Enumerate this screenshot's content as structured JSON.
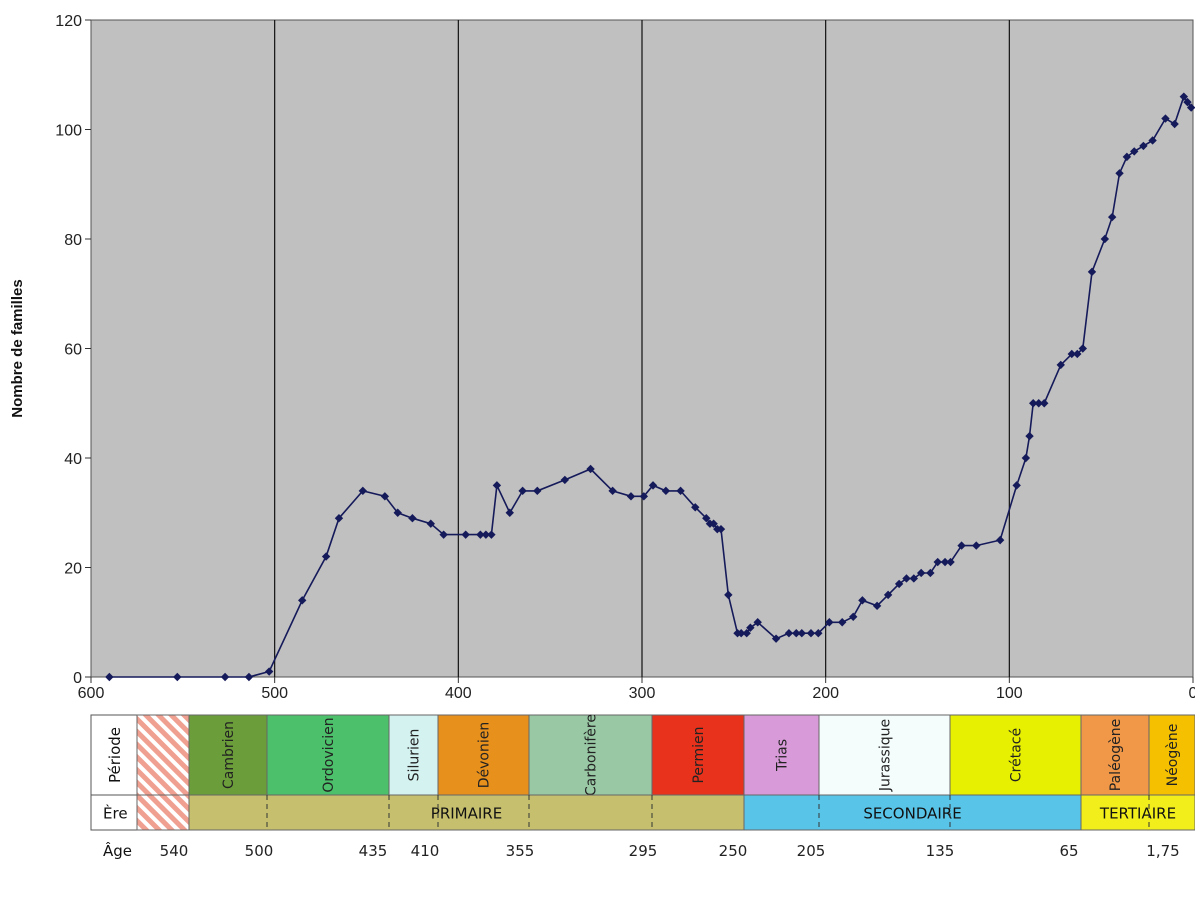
{
  "chart_data": {
    "type": "line",
    "ylabel": "Nombre de familles",
    "xlabel": "",
    "xlim": [
      600,
      0
    ],
    "ylim": [
      0,
      120
    ],
    "x_ticks": [
      600,
      500,
      400,
      300,
      200,
      100,
      0
    ],
    "y_ticks": [
      0,
      20,
      40,
      60,
      80,
      100,
      120
    ],
    "grid": "vertical lines at each x tick",
    "background": "#c0c0c0",
    "series": [
      {
        "color": "#151a5a",
        "points": [
          [
            590,
            0
          ],
          [
            553,
            0
          ],
          [
            527,
            0
          ],
          [
            514,
            0
          ],
          [
            503,
            1
          ],
          [
            485,
            14
          ],
          [
            472,
            22
          ],
          [
            465,
            29
          ],
          [
            452,
            34
          ],
          [
            440,
            33
          ],
          [
            433,
            30
          ],
          [
            425,
            29
          ],
          [
            415,
            28
          ],
          [
            408,
            26
          ],
          [
            396,
            26
          ],
          [
            388,
            26
          ],
          [
            385,
            26
          ],
          [
            382,
            26
          ],
          [
            379,
            35
          ],
          [
            372,
            30
          ],
          [
            365,
            34
          ],
          [
            357,
            34
          ],
          [
            342,
            36
          ],
          [
            328,
            38
          ],
          [
            316,
            34
          ],
          [
            306,
            33
          ],
          [
            299,
            33
          ],
          [
            294,
            35
          ],
          [
            287,
            34
          ],
          [
            279,
            34
          ],
          [
            271,
            31
          ],
          [
            265,
            29
          ],
          [
            263,
            28
          ],
          [
            261,
            28
          ],
          [
            259,
            27
          ],
          [
            257,
            27
          ],
          [
            253,
            15
          ],
          [
            248,
            8
          ],
          [
            246,
            8
          ],
          [
            243,
            8
          ],
          [
            241,
            9
          ],
          [
            237,
            10
          ],
          [
            227,
            7
          ],
          [
            220,
            8
          ],
          [
            216,
            8
          ],
          [
            213,
            8
          ],
          [
            208,
            8
          ],
          [
            204,
            8
          ],
          [
            198,
            10
          ],
          [
            191,
            10
          ],
          [
            185,
            11
          ],
          [
            180,
            14
          ],
          [
            172,
            13
          ],
          [
            166,
            15
          ],
          [
            160,
            17
          ],
          [
            156,
            18
          ],
          [
            152,
            18
          ],
          [
            148,
            19
          ],
          [
            143,
            19
          ],
          [
            139,
            21
          ],
          [
            135,
            21
          ],
          [
            132,
            21
          ],
          [
            126,
            24
          ],
          [
            118,
            24
          ],
          [
            105,
            25
          ],
          [
            96,
            35
          ],
          [
            91,
            40
          ],
          [
            89,
            44
          ],
          [
            87,
            50
          ],
          [
            84,
            50
          ],
          [
            81,
            50
          ],
          [
            72,
            57
          ],
          [
            66,
            59
          ],
          [
            63,
            59
          ],
          [
            60,
            60
          ],
          [
            55,
            74
          ],
          [
            48,
            80
          ],
          [
            44,
            84
          ],
          [
            40,
            92
          ],
          [
            36,
            95
          ],
          [
            32,
            96
          ],
          [
            27,
            97
          ],
          [
            22,
            98
          ],
          [
            15,
            102
          ],
          [
            10,
            101
          ],
          [
            5,
            106
          ],
          [
            3,
            105
          ],
          [
            1,
            104
          ]
        ]
      }
    ]
  },
  "timescale": {
    "row_labels": {
      "period": "Période",
      "era": "Ère",
      "age": "Âge"
    },
    "periods": [
      {
        "name": "",
        "color": "#f0a090",
        "hatched": true
      },
      {
        "name": "Cambrien",
        "color": "#6b9e3a"
      },
      {
        "name": "Ordovicien",
        "color": "#4cc06a"
      },
      {
        "name": "Silurien",
        "color": "#d4f2f0"
      },
      {
        "name": "Dévonien",
        "color": "#e8901c"
      },
      {
        "name": "Carbonifère",
        "color": "#98c8a4"
      },
      {
        "name": "Permien",
        "color": "#e8321c"
      },
      {
        "name": "Trias",
        "color": "#d89ad8"
      },
      {
        "name": "Jurassique",
        "color": "#f4fcfc"
      },
      {
        "name": "Crétacé",
        "color": "#e6f000"
      },
      {
        "name": "Paléogène",
        "color": "#f09848"
      },
      {
        "name": "Néogène",
        "color": "#f4c000"
      }
    ],
    "eras": [
      {
        "name": "PRIMAIRE",
        "color": "#c6c06e"
      },
      {
        "name": "SECONDAIRE",
        "color": "#58c4e8"
      },
      {
        "name": "TERTIAIRE",
        "color": "#f2ee1c"
      }
    ],
    "ages": [
      "540",
      "500",
      "435",
      "410",
      "355",
      "295",
      "250",
      "205",
      "135",
      "65",
      "1,75"
    ]
  }
}
